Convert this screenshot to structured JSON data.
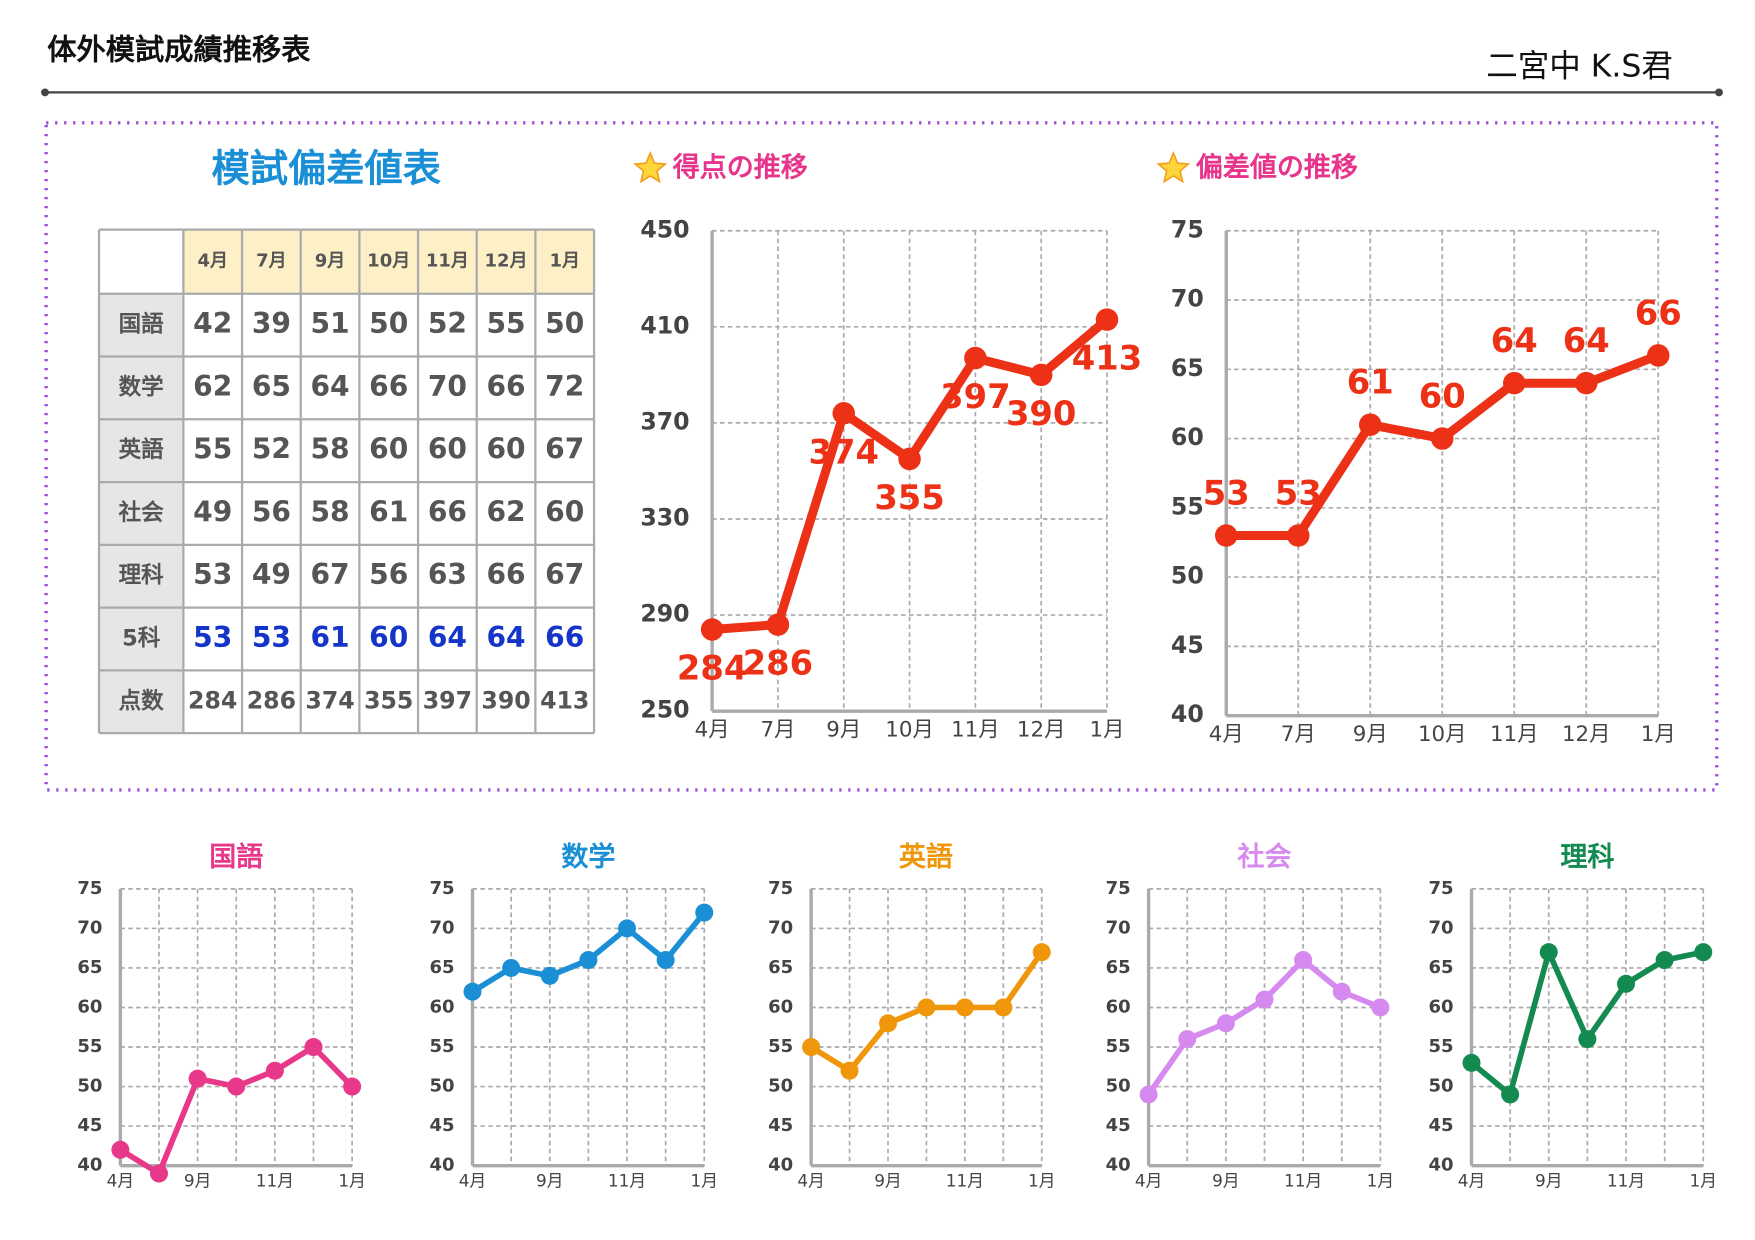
{
  "title": "体外模試成績推移表",
  "student": "二宮中 K.S君",
  "table": {
    "title": "模試偏差値表",
    "columns": [
      "4月",
      "7月",
      "9月",
      "10月",
      "11月",
      "12月",
      "1月"
    ],
    "rows": [
      {
        "label": "国語",
        "values": [
          42,
          39,
          51,
          50,
          52,
          55,
          50
        ]
      },
      {
        "label": "数学",
        "values": [
          62,
          65,
          64,
          66,
          70,
          66,
          72
        ]
      },
      {
        "label": "英語",
        "values": [
          55,
          52,
          58,
          60,
          60,
          60,
          67
        ]
      },
      {
        "label": "社会",
        "values": [
          49,
          56,
          58,
          61,
          66,
          62,
          60
        ]
      },
      {
        "label": "理科",
        "values": [
          53,
          49,
          67,
          56,
          63,
          66,
          67
        ]
      },
      {
        "label": "5科",
        "values": [
          53,
          53,
          61,
          60,
          64,
          64,
          66
        ]
      },
      {
        "label": "点数",
        "values": [
          284,
          286,
          374,
          355,
          397,
          390,
          413
        ]
      }
    ]
  },
  "chart_data": [
    {
      "type": "line",
      "title": "得点の推移",
      "title_color": "#e6358b",
      "categories": [
        "4月",
        "7月",
        "9月",
        "10月",
        "11月",
        "12月",
        "1月"
      ],
      "values": [
        284,
        286,
        374,
        355,
        397,
        390,
        413
      ],
      "color": "#ec3117",
      "show_values": true,
      "ylim": [
        250,
        450
      ],
      "yticks": [
        250,
        290,
        330,
        370,
        410,
        450
      ],
      "grid": true
    },
    {
      "type": "line",
      "title": "偏差値の推移",
      "title_color": "#e6358b",
      "categories": [
        "4月",
        "7月",
        "9月",
        "10月",
        "11月",
        "12月",
        "1月"
      ],
      "values": [
        53,
        53,
        61,
        60,
        64,
        64,
        66
      ],
      "color": "#ec3117",
      "show_values": true,
      "ylim": [
        40,
        75
      ],
      "yticks": [
        40,
        45,
        50,
        55,
        60,
        65,
        70,
        75
      ],
      "grid": true
    },
    {
      "type": "line",
      "title": "国語",
      "categories": [
        "4月",
        null,
        "9月",
        null,
        "11月",
        null,
        "1月"
      ],
      "values": [
        42,
        39,
        51,
        50,
        52,
        55,
        50
      ],
      "color": "#e8388a",
      "ylim": [
        40,
        75
      ],
      "yticks": [
        40,
        45,
        50,
        55,
        60,
        65,
        70,
        75
      ],
      "grid": true
    },
    {
      "type": "line",
      "title": "数学",
      "categories": [
        "4月",
        null,
        "9月",
        null,
        "11月",
        null,
        "1月"
      ],
      "values": [
        62,
        65,
        64,
        66,
        70,
        66,
        72
      ],
      "color": "#1a8fd6",
      "ylim": [
        40,
        75
      ],
      "yticks": [
        40,
        45,
        50,
        55,
        60,
        65,
        70,
        75
      ],
      "grid": true
    },
    {
      "type": "line",
      "title": "英語",
      "categories": [
        "4月",
        null,
        "9月",
        null,
        "11月",
        null,
        "1月"
      ],
      "values": [
        55,
        52,
        58,
        60,
        60,
        60,
        67
      ],
      "color": "#f0960a",
      "ylim": [
        40,
        75
      ],
      "yticks": [
        40,
        45,
        50,
        55,
        60,
        65,
        70,
        75
      ],
      "grid": true
    },
    {
      "type": "line",
      "title": "社会",
      "categories": [
        "4月",
        null,
        "9月",
        null,
        "11月",
        null,
        "1月"
      ],
      "values": [
        49,
        56,
        58,
        61,
        66,
        62,
        60
      ],
      "color": "#d68af0",
      "ylim": [
        40,
        75
      ],
      "yticks": [
        40,
        45,
        50,
        55,
        60,
        65,
        70,
        75
      ],
      "grid": true
    },
    {
      "type": "line",
      "title": "理科",
      "categories": [
        "4月",
        null,
        "9月",
        null,
        "11月",
        null,
        "1月"
      ],
      "values": [
        53,
        49,
        67,
        56,
        63,
        66,
        67
      ],
      "color": "#138a50",
      "ylim": [
        40,
        75
      ],
      "yticks": [
        40,
        45,
        50,
        55,
        60,
        65,
        70,
        75
      ],
      "grid": true
    }
  ]
}
